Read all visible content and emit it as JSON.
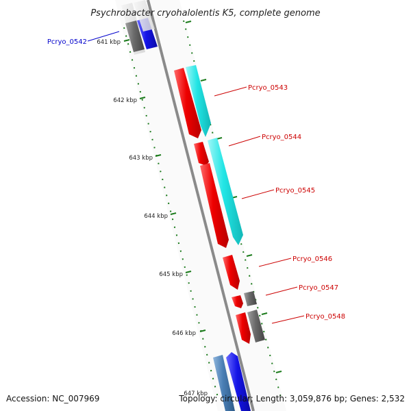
{
  "title": "Psychrobacter cryohalolentis K5, complete genome",
  "footer": {
    "accession": "Accession: NC_007969",
    "summary": "Topology: circular; Length: 3,059,876 bp; Genes: 2,532"
  },
  "colors": {
    "backbone": "#8a8a8a",
    "tick": "#1a7a1a",
    "red": "#ee0000",
    "cyan": "#22e5e5",
    "blue": "#1414e6",
    "gray": "#666666",
    "steel": "#4a7fb5",
    "label_blue": "#0000cc",
    "label_red": "#cc0000"
  },
  "ticks": [
    {
      "label": "641 kbp"
    },
    {
      "label": "642 kbp"
    },
    {
      "label": "643 kbp"
    },
    {
      "label": "644 kbp"
    },
    {
      "label": "645 kbp"
    },
    {
      "label": "646 kbp"
    },
    {
      "label": "647 kbp"
    }
  ],
  "genes": [
    {
      "id": "Pcryo_0542",
      "color": "label_blue"
    },
    {
      "id": "Pcryo_0543",
      "color": "label_red"
    },
    {
      "id": "Pcryo_0544",
      "color": "label_red"
    },
    {
      "id": "Pcryo_0545",
      "color": "label_red"
    },
    {
      "id": "Pcryo_0546",
      "color": "label_red"
    },
    {
      "id": "Pcryo_0547",
      "color": "label_red"
    },
    {
      "id": "Pcryo_0548",
      "color": "label_red"
    }
  ]
}
